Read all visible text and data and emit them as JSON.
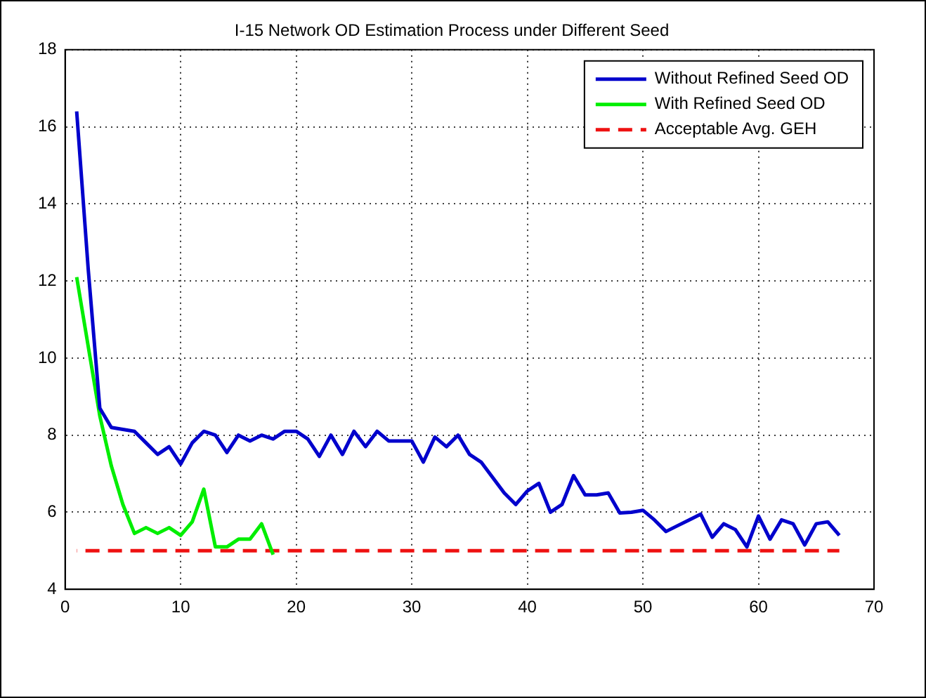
{
  "chart_data": {
    "type": "line",
    "title": "I-15 Network OD Estimation Process under Different Seed",
    "x": [
      1,
      2,
      3,
      4,
      5,
      6,
      7,
      8,
      9,
      10,
      11,
      12,
      13,
      14,
      15,
      16,
      17,
      18,
      19,
      20,
      21,
      22,
      23,
      24,
      25,
      26,
      27,
      28,
      29,
      30,
      31,
      32,
      33,
      34,
      35,
      36,
      37,
      38,
      39,
      40,
      41,
      42,
      43,
      44,
      45,
      46,
      47,
      48,
      49,
      50,
      51,
      52,
      53,
      54,
      55,
      56,
      57,
      58,
      59,
      60,
      61,
      62,
      63,
      64,
      65,
      66,
      67
    ],
    "series": [
      {
        "name": "Without Refined Seed OD",
        "color": "#0000cc",
        "values": [
          16.4,
          12.3,
          8.7,
          8.2,
          8.15,
          8.1,
          7.8,
          7.5,
          7.7,
          7.25,
          7.8,
          8.1,
          8.0,
          7.55,
          8.0,
          7.85,
          8.0,
          7.9,
          8.1,
          8.1,
          7.9,
          7.45,
          8.0,
          7.5,
          8.1,
          7.7,
          8.1,
          7.85,
          7.85,
          7.85,
          7.3,
          7.95,
          7.7,
          8.0,
          7.5,
          7.3,
          6.9,
          6.5,
          6.2,
          6.55,
          6.75,
          6.0,
          6.2,
          6.95,
          6.45,
          6.45,
          6.5,
          5.98,
          6.0,
          6.05,
          5.8,
          5.5,
          5.65,
          5.8,
          5.95,
          5.35,
          5.7,
          5.55,
          5.1,
          5.9,
          5.3,
          5.8,
          5.7,
          5.15,
          5.7,
          5.75,
          5.4
        ]
      },
      {
        "name": "With Refined Seed OD",
        "color": "#00ee00",
        "x": [
          1,
          2,
          3,
          4,
          5,
          6,
          7,
          8,
          9,
          10,
          11,
          12,
          13,
          14,
          15,
          16,
          17,
          18
        ],
        "values": [
          12.1,
          10.3,
          8.5,
          7.2,
          6.2,
          5.45,
          5.6,
          5.45,
          5.6,
          5.4,
          5.75,
          6.6,
          5.1,
          5.1,
          5.3,
          5.3,
          5.7,
          4.9
        ]
      },
      {
        "name": "Acceptable Avg. GEH",
        "color": "#ee1111",
        "line_style": "dashed",
        "x": [
          1,
          67
        ],
        "values": [
          5,
          5
        ]
      }
    ],
    "xlim": [
      0,
      70
    ],
    "xticks": [
      0,
      10,
      20,
      30,
      40,
      50,
      60,
      70
    ],
    "ylim": [
      4,
      18
    ],
    "yticks": [
      4,
      6,
      8,
      10,
      12,
      14,
      16,
      18
    ],
    "grid": true,
    "legend": "top right",
    "marker": "none",
    "line_style": "solid"
  }
}
